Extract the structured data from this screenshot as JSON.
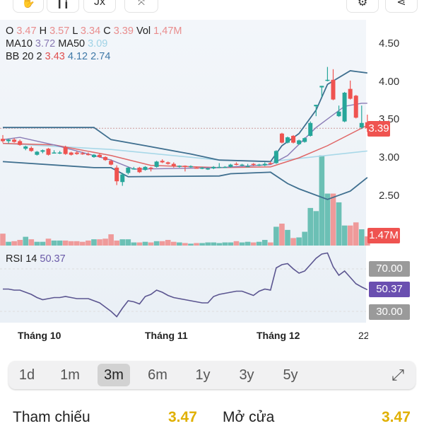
{
  "toolbar": {
    "left_buttons": [
      "hand-icon",
      "candlestick-icon",
      "fx-icon",
      "drawing-icon"
    ],
    "fx_label": "Jx",
    "right_buttons": [
      "gear-icon",
      "share-icon"
    ]
  },
  "legend": {
    "ohlc": {
      "o_label": "O",
      "o": "3.47",
      "h_label": "H",
      "h": "3.57",
      "l_label": "L",
      "l": "3.34",
      "c_label": "C",
      "c": "3.39",
      "vol_label": "Vol",
      "vol": "1,47M"
    },
    "ma": {
      "ma10_label": "MA10",
      "ma10": "3.72",
      "ma50_label": "MA50",
      "ma50": "3.09"
    },
    "bb": {
      "label": "BB 20 2",
      "mid": "3.43",
      "upper": "4.12",
      "lower": "2.74"
    },
    "rsi": {
      "label": "RSI 14",
      "value": "50.37"
    }
  },
  "colors": {
    "up": "#26a69a",
    "down": "#ef5350",
    "vol_up": "#6cc0b5",
    "vol_down": "#ef9a9a",
    "bb": "#3f6f8f",
    "bb_mid": "#e06666",
    "ma10": "#8a7bb5",
    "ma50": "#a8d8e8",
    "rsi": "#5b5590",
    "rsi_badge": "#6a4fb0",
    "level_badge": "#9a9a9a",
    "gold": "#e0b000"
  },
  "axis": {
    "price_ticks": [
      "4.50",
      "4.00",
      "3.50",
      "3.00",
      "2.50"
    ],
    "last_price": "3.39",
    "last_volume": "1.47M",
    "rsi_levels": [
      "70.00",
      "30.00"
    ],
    "rsi_last": "50.37",
    "x_labels": [
      "Tháng 10",
      "Tháng 11",
      "Tháng 12",
      "22"
    ]
  },
  "range": {
    "options": [
      "1d",
      "1m",
      "3m",
      "6m",
      "1y",
      "3y",
      "5y"
    ],
    "selected": "3m",
    "expand_icon": "expand-icon"
  },
  "stats": {
    "ref_label": "Tham chiếu",
    "ref_value": "3.47",
    "open_label": "Mở cửa",
    "open_value": "3.47"
  },
  "chart_data": {
    "type": "candlestick",
    "price_range": [
      2.3,
      4.6
    ],
    "candles_ohlcv_millions": [
      [
        3.25,
        3.3,
        3.2,
        3.22,
        1.9
      ],
      [
        3.22,
        3.25,
        3.19,
        3.24,
        0.6
      ],
      [
        3.24,
        3.26,
        3.2,
        3.21,
        0.7
      ],
      [
        3.22,
        3.24,
        3.16,
        3.17,
        0.9
      ],
      [
        3.12,
        3.16,
        3.1,
        3.15,
        1.4
      ],
      [
        3.13,
        3.15,
        3.08,
        3.09,
        1.0
      ],
      [
        3.04,
        3.09,
        3.03,
        3.08,
        0.6
      ],
      [
        3.08,
        3.11,
        3.06,
        3.1,
        0.6
      ],
      [
        3.12,
        3.13,
        3.03,
        3.04,
        1.1
      ],
      [
        3.07,
        3.1,
        3.06,
        3.07,
        0.8
      ],
      [
        3.07,
        3.09,
        3.05,
        3.07,
        0.8
      ],
      [
        3.14,
        3.16,
        3.04,
        3.05,
        0.8
      ],
      [
        3.07,
        3.08,
        3.03,
        3.04,
        0.7
      ],
      [
        3.07,
        3.09,
        3.04,
        3.05,
        0.7
      ],
      [
        3.06,
        3.08,
        3.04,
        3.05,
        0.6
      ],
      [
        3.05,
        3.07,
        3.03,
        3.04,
        0.8
      ],
      [
        3.01,
        3.05,
        3.0,
        3.04,
        1.0
      ],
      [
        3.04,
        3.06,
        3.0,
        3.01,
        1.0
      ],
      [
        3.01,
        3.02,
        2.96,
        2.97,
        1.1
      ],
      [
        2.96,
        2.98,
        2.9,
        2.91,
        1.8
      ],
      [
        2.87,
        2.9,
        2.64,
        2.69,
        0.8
      ],
      [
        2.68,
        2.8,
        2.63,
        2.78,
        1.0
      ],
      [
        2.8,
        2.88,
        2.78,
        2.87,
        1.0
      ],
      [
        2.86,
        2.88,
        2.85,
        2.86,
        0.5
      ],
      [
        2.87,
        2.88,
        2.8,
        2.81,
        0.5
      ],
      [
        2.84,
        2.89,
        2.83,
        2.88,
        0.6
      ],
      [
        2.87,
        2.88,
        2.82,
        2.86,
        0.5
      ],
      [
        2.88,
        2.96,
        2.87,
        2.95,
        0.7
      ],
      [
        2.96,
        2.98,
        2.93,
        2.94,
        0.7
      ],
      [
        2.94,
        2.95,
        2.91,
        2.92,
        0.9
      ],
      [
        2.92,
        2.94,
        2.87,
        2.89,
        0.6
      ],
      [
        2.89,
        2.9,
        2.87,
        2.895,
        0.5
      ],
      [
        2.895,
        2.9,
        2.82,
        2.89,
        0.4
      ],
      [
        2.88,
        2.9,
        2.87,
        2.89,
        0.3
      ],
      [
        2.87,
        2.88,
        2.86,
        2.86,
        0.4
      ],
      [
        2.86,
        2.88,
        2.85,
        2.87,
        0.4
      ],
      [
        2.85,
        2.87,
        2.84,
        2.86,
        0.5
      ],
      [
        2.86,
        2.89,
        2.85,
        2.88,
        0.5
      ],
      [
        2.875,
        2.93,
        2.87,
        2.88,
        0.4
      ],
      [
        2.875,
        2.89,
        2.87,
        2.88,
        0.5
      ],
      [
        2.88,
        2.92,
        2.87,
        2.91,
        0.5
      ],
      [
        2.92,
        2.94,
        2.9,
        2.91,
        0.7
      ],
      [
        2.9,
        2.92,
        2.89,
        2.91,
        0.5
      ],
      [
        2.885,
        2.92,
        2.88,
        2.89,
        0.6
      ],
      [
        2.92,
        2.93,
        2.89,
        2.91,
        0.5
      ],
      [
        2.9,
        2.92,
        2.89,
        2.91,
        0.6
      ],
      [
        2.9,
        2.94,
        2.89,
        2.92,
        0.9
      ],
      [
        2.93,
        2.95,
        2.91,
        2.92,
        0.5
      ],
      [
        2.93,
        3.1,
        2.92,
        3.09,
        3.0
      ],
      [
        3.32,
        3.33,
        3.19,
        3.2,
        3.5
      ],
      [
        3.2,
        3.28,
        3.19,
        3.27,
        2.5
      ],
      [
        3.29,
        3.3,
        3.19,
        3.2,
        1.2
      ],
      [
        3.18,
        3.24,
        3.17,
        3.23,
        1.3
      ],
      [
        3.21,
        3.27,
        3.2,
        3.26,
        2.2
      ],
      [
        3.29,
        3.48,
        3.28,
        3.46,
        6.0
      ],
      [
        3.68,
        3.7,
        3.55,
        3.7,
        5.5
      ],
      [
        3.93,
        3.95,
        3.8,
        3.95,
        14.4
      ],
      [
        4.02,
        4.2,
        4.01,
        4.03,
        8.3
      ],
      [
        4.03,
        4.17,
        3.76,
        3.77,
        8.3
      ],
      [
        3.55,
        3.69,
        3.54,
        3.61,
        6.9
      ],
      [
        3.48,
        3.87,
        3.47,
        3.86,
        3.2
      ],
      [
        3.91,
        4.02,
        3.77,
        3.78,
        3.2
      ],
      [
        3.82,
        3.83,
        3.52,
        3.53,
        3.7
      ],
      [
        3.4,
        3.69,
        3.38,
        3.46,
        2.6
      ],
      [
        3.47,
        3.57,
        3.34,
        3.39,
        1.47
      ]
    ],
    "bb_upper": [
      [
        0,
        3.4
      ],
      [
        16,
        3.4
      ],
      [
        19,
        3.24
      ],
      [
        25,
        3.16
      ],
      [
        33,
        3.05
      ],
      [
        38,
        2.97
      ],
      [
        47,
        2.95
      ],
      [
        49,
        3.16
      ],
      [
        52,
        3.32
      ],
      [
        55,
        3.63
      ],
      [
        57,
        3.97
      ],
      [
        61,
        4.15
      ],
      [
        64,
        4.12
      ]
    ],
    "bb_lower": [
      [
        0,
        2.95
      ],
      [
        16,
        2.87
      ],
      [
        19,
        2.87
      ],
      [
        22,
        2.75
      ],
      [
        38,
        2.76
      ],
      [
        40,
        2.79
      ],
      [
        47,
        2.81
      ],
      [
        50,
        2.66
      ],
      [
        52,
        2.59
      ],
      [
        57,
        2.45
      ],
      [
        61,
        2.56
      ],
      [
        64,
        2.74
      ]
    ],
    "bb_mid": [
      [
        0,
        3.19
      ],
      [
        9,
        3.17
      ],
      [
        19,
        3.03
      ],
      [
        26,
        2.9
      ],
      [
        38,
        2.87
      ],
      [
        47,
        2.88
      ],
      [
        52,
        3.0
      ],
      [
        57,
        3.16
      ],
      [
        64,
        3.43
      ]
    ],
    "ma10": [
      [
        0,
        3.24
      ],
      [
        3,
        3.27
      ],
      [
        9,
        3.17
      ],
      [
        19,
        2.97
      ],
      [
        23,
        2.85
      ],
      [
        38,
        2.87
      ],
      [
        47,
        2.91
      ],
      [
        50,
        3.03
      ],
      [
        55,
        3.4
      ],
      [
        60,
        3.68
      ],
      [
        63,
        3.72
      ],
      [
        64,
        3.72
      ]
    ],
    "ma50": [
      [
        0,
        3.19
      ],
      [
        19,
        3.11
      ],
      [
        38,
        2.97
      ],
      [
        47,
        2.95
      ],
      [
        64,
        3.09
      ]
    ],
    "rsi": [
      51,
      51,
      50,
      50,
      48,
      46,
      43,
      41,
      42,
      43,
      43,
      44,
      43,
      42,
      42,
      42,
      40,
      38,
      34,
      30,
      25,
      33,
      40,
      39,
      37,
      44,
      46,
      50,
      48,
      45,
      43,
      42,
      41,
      40,
      39,
      38,
      38,
      44,
      46,
      47,
      48,
      49,
      49,
      47,
      45,
      49,
      51,
      50,
      71,
      74,
      75,
      70,
      66,
      68,
      74,
      80,
      84,
      85,
      72,
      64,
      68,
      62,
      56,
      53,
      50.37
    ],
    "rsi_levels": [
      70,
      30
    ]
  }
}
